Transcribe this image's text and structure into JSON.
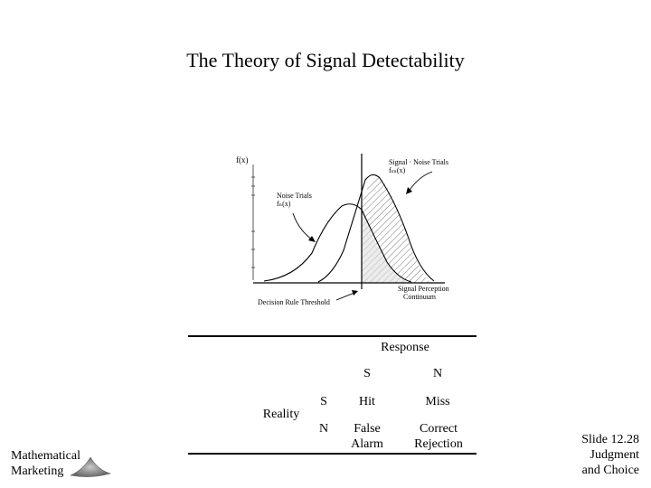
{
  "title": "The Theory of Signal Detectability",
  "figure": {
    "y_axis_label": "f(x)",
    "signal_label_line1": "Signal · Noise Trials",
    "signal_label_line2": "fₛₙ(x)",
    "noise_label_line1": "Noise Trials",
    "noise_label_line2": "fₙ(x)",
    "threshold_label": "Decision Rule Threshold",
    "axis_label_line1": "Signal Perception",
    "axis_label_line2": "Continuum"
  },
  "table": {
    "header": "Response",
    "col_s": "S",
    "col_n": "N",
    "reality": "Reality",
    "row_s": "S",
    "row_n": "N",
    "hit": "Hit",
    "miss": "Miss",
    "false_alarm_line1": "False",
    "false_alarm_line2": "Alarm",
    "correct_rejection_line1": "Correct",
    "correct_rejection_line2": "Rejection"
  },
  "footer": {
    "left_line1": "Mathematical",
    "left_line2": "Marketing",
    "right_line1": "Slide 12.28",
    "right_line2": "Judgment",
    "right_line3": "and Choice"
  }
}
